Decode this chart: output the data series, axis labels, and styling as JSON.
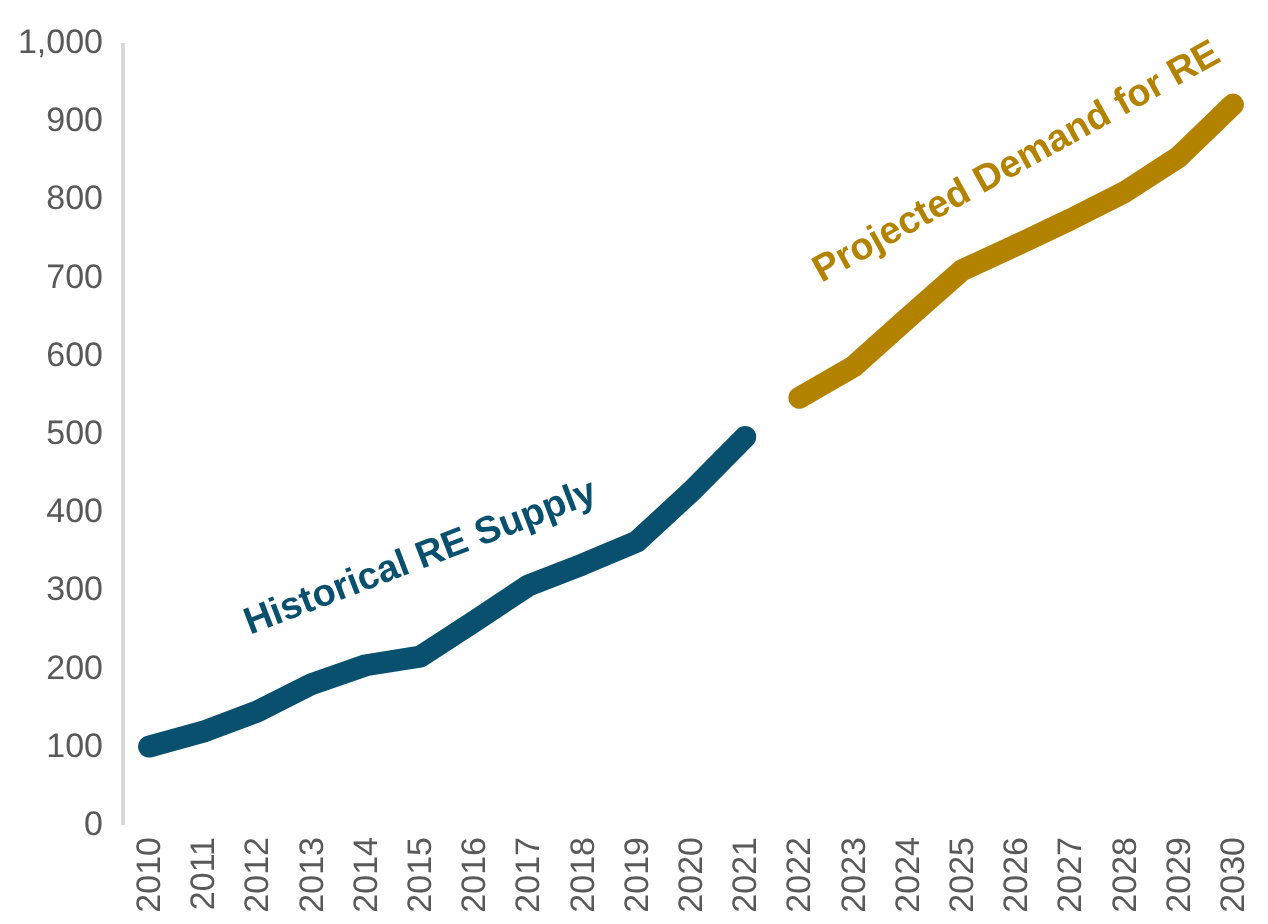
{
  "chart_data": {
    "type": "line",
    "categories": [
      "2010",
      "2011",
      "2012",
      "2013",
      "2014",
      "2015",
      "2016",
      "2017",
      "2018",
      "2019",
      "2020",
      "2021",
      "2022",
      "2023",
      "2024",
      "2025",
      "2026",
      "2027",
      "2028",
      "2029",
      "2030"
    ],
    "series": [
      {
        "name": "Historical RE Supply",
        "color": "#08506e",
        "values": [
          99,
          118,
          144,
          179,
          203,
          214,
          259,
          305,
          332,
          361,
          425,
          495,
          null,
          null,
          null,
          null,
          null,
          null,
          null,
          null,
          null
        ]
      },
      {
        "name": "Projected Demand for RE",
        "color": "#b38300",
        "values": [
          null,
          null,
          null,
          null,
          null,
          null,
          null,
          null,
          null,
          null,
          null,
          null,
          545,
          585,
          647,
          708,
          740,
          773,
          808,
          853,
          920
        ]
      }
    ],
    "ylim": [
      0,
      1000
    ],
    "yticks": [
      0,
      100,
      200,
      300,
      400,
      500,
      600,
      700,
      800,
      900,
      {
        "value": 1000,
        "label": "1,000"
      }
    ],
    "grid": false,
    "legend": false,
    "marker": "none",
    "line_style": "solid"
  }
}
